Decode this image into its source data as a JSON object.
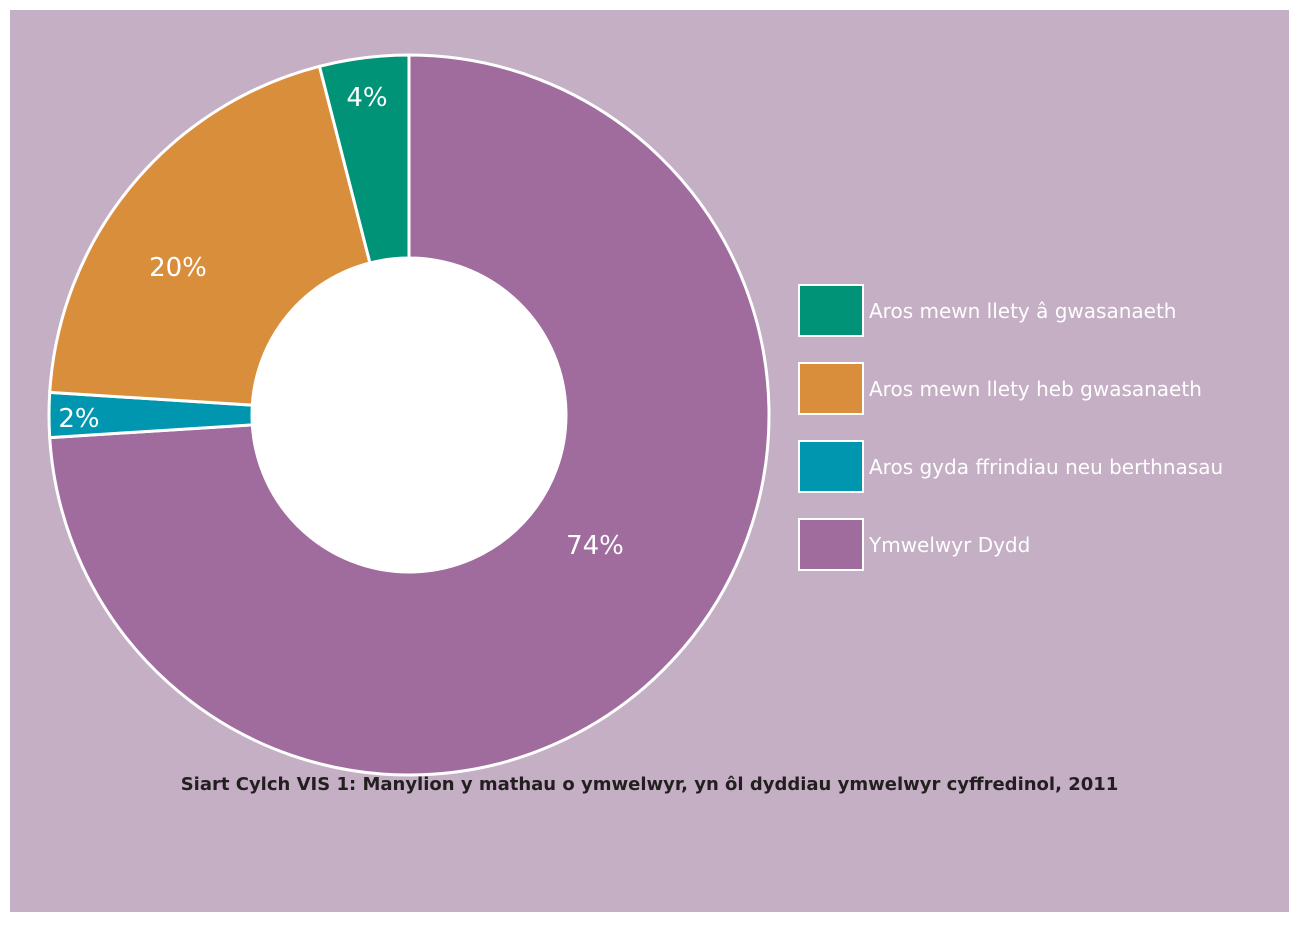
{
  "chart_data": {
    "type": "pie",
    "donut": true,
    "categories": [
      "Aros mewn llety â gwasanaeth",
      "Aros mewn llety heb gwasanaeth",
      "Aros gyda ffrindiau neu berthnasau",
      "Ymwelwyr Dydd"
    ],
    "values": [
      4,
      20,
      2,
      74
    ],
    "labels": [
      "4%",
      "20%",
      "2%",
      "74%"
    ],
    "colors": [
      "#009378",
      "#d98e3c",
      "#0096b0",
      "#a06b9d"
    ],
    "title": "Siart Cylch VIS 1: Manylion y mathau o ymwelwyr, yn ôl dyddiau ymwelwyr cyffredinol, 2011",
    "legend_position": "right",
    "background_color": "#c4afc4"
  }
}
